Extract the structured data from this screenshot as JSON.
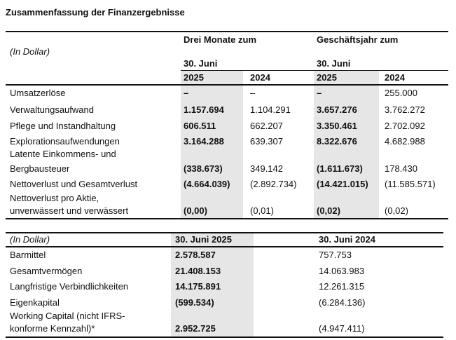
{
  "title": "Zusammenfassung der Finanzergebnisse",
  "table1": {
    "unit_label": "(In Dollar)",
    "group_headers": [
      "Drei Monate zum",
      "Geschäftsjahr zum"
    ],
    "date_headers": [
      "30. Juni",
      "30. Juni"
    ],
    "year_headers": [
      "2025",
      "2024",
      "2025",
      "2024"
    ],
    "rows": [
      {
        "label": [
          "Umsatzerlöse"
        ],
        "values": [
          "–",
          "–",
          "–",
          "255.000"
        ]
      },
      {
        "label": [
          "Verwaltungsaufwand"
        ],
        "values": [
          "1.157.694",
          "1.104.291",
          "3.657.276",
          "3.762.272"
        ]
      },
      {
        "label": [
          "Pflege und Instandhaltung"
        ],
        "values": [
          "606.511",
          "662.207",
          "3.350.461",
          "2.702.092"
        ]
      },
      {
        "label": [
          "Explorationsaufwendungen"
        ],
        "values": [
          "3.164.288",
          "639.307",
          "8.322.676",
          "4.682.988"
        ]
      },
      {
        "label": [
          "Latente Einkommens- und",
          "Bergbausteuer"
        ],
        "values": [
          "(338.673)",
          "349.142",
          "(1.611.673)",
          "178.430"
        ]
      },
      {
        "label": [
          "Nettoverlust und Gesamtverlust"
        ],
        "values": [
          "(4.664.039)",
          "(2.892.734)",
          "(14.421.015)",
          "(11.585.571)"
        ]
      },
      {
        "label": [
          "Nettoverlust pro Aktie,",
          "unverwässert und verwässert"
        ],
        "values": [
          "(0,00)",
          "(0,01)",
          "(0,02)",
          "(0,02)"
        ]
      }
    ]
  },
  "table2": {
    "unit_label": "(In Dollar)",
    "headers": [
      "30. Juni 2025",
      "30. Juni 2024"
    ],
    "rows": [
      {
        "label": [
          "Barmittel"
        ],
        "values": [
          "2.578.587",
          "757.753"
        ]
      },
      {
        "label": [
          "Gesamtvermögen"
        ],
        "values": [
          "21.408.153",
          "14.063.983"
        ]
      },
      {
        "label": [
          "Langfristige Verbindlichkeiten"
        ],
        "values": [
          "14.175.891",
          "12.261.315"
        ]
      },
      {
        "label": [
          "Eigenkapital"
        ],
        "values": [
          "(599.534)",
          "(6.284.136)"
        ]
      },
      {
        "label": [
          "Working Capital (nicht IFRS-",
          "  konforme Kennzahl)*"
        ],
        "values": [
          "2.952.725",
          "(4.947.411)"
        ]
      }
    ]
  }
}
